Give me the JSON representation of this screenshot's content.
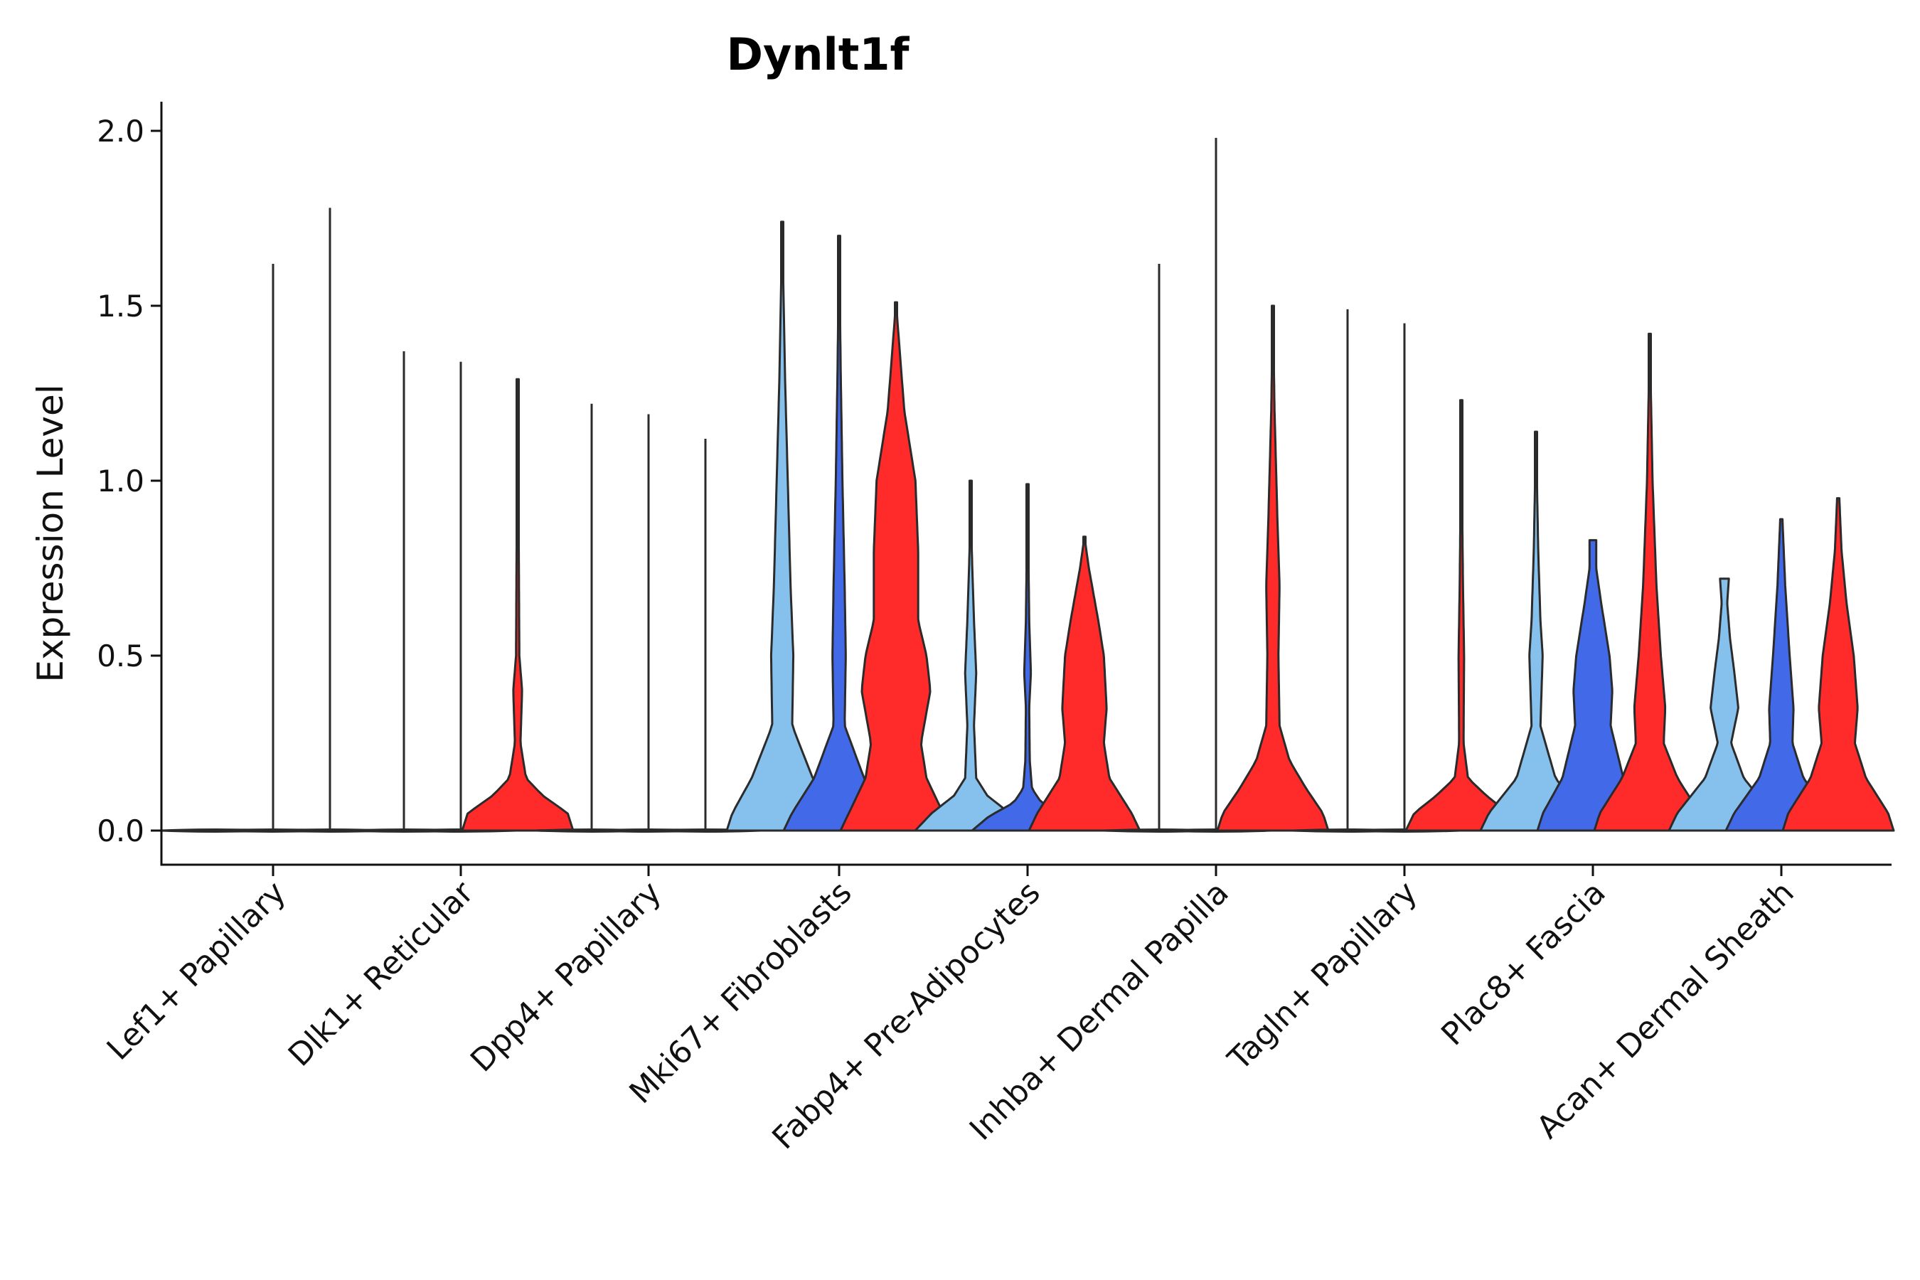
{
  "chart_data": {
    "type": "violin",
    "title": "Dynlt1f",
    "xlabel": "",
    "ylabel": "Expression Level",
    "ylim": [
      -0.1,
      2.08
    ],
    "yticks": [
      "0.0",
      "0.5",
      "1.0",
      "1.5",
      "2.0"
    ],
    "grid": false,
    "legend": "none",
    "series_colors": [
      "#85C1EC",
      "#4169E8",
      "#FF2A2A"
    ],
    "categories": [
      "Lef1+ Papillary",
      "Dlk1+ Reticular",
      "Dpp4+ Papillary",
      "Mki67+ Fibroblasts",
      "Fabp4+ Pre-Adipocytes",
      "Inhba+ Dermal Papilla",
      "Tagln+ Papillary",
      "Plac8+ Fascia",
      "Acan+ Dermal Sheath"
    ],
    "violins": [
      [
        {
          "max": 0.0
        },
        {
          "max": 1.62
        },
        {
          "max": 1.78
        }
      ],
      [
        {
          "max": 1.37
        },
        {
          "max": 1.34
        },
        {
          "max": 1.29,
          "profile": [
            [
              0,
              1
            ],
            [
              0.05,
              0.9
            ],
            [
              0.1,
              0.45
            ],
            [
              0.15,
              0.15
            ],
            [
              0.25,
              0.05
            ],
            [
              0.4,
              0.08
            ],
            [
              0.5,
              0.03
            ],
            [
              0.8,
              0.02
            ],
            [
              1.29,
              0
            ]
          ]
        }
      ],
      [
        {
          "max": 1.22
        },
        {
          "max": 1.19
        },
        {
          "max": 1.12
        }
      ],
      [
        {
          "max": 1.74,
          "profile": [
            [
              0,
              1
            ],
            [
              0.05,
              0.9
            ],
            [
              0.15,
              0.55
            ],
            [
              0.3,
              0.18
            ],
            [
              0.5,
              0.2
            ],
            [
              0.7,
              0.15
            ],
            [
              1.0,
              0.1
            ],
            [
              1.3,
              0.05
            ],
            [
              1.74,
              0
            ]
          ]
        },
        {
          "max": 1.7,
          "profile": [
            [
              0,
              1
            ],
            [
              0.05,
              0.85
            ],
            [
              0.15,
              0.45
            ],
            [
              0.3,
              0.1
            ],
            [
              0.5,
              0.12
            ],
            [
              0.7,
              0.1
            ],
            [
              1.0,
              0.06
            ],
            [
              1.3,
              0.03
            ],
            [
              1.7,
              0
            ]
          ]
        },
        {
          "max": 1.51,
          "profile": [
            [
              0,
              1
            ],
            [
              0.05,
              0.85
            ],
            [
              0.15,
              0.55
            ],
            [
              0.25,
              0.45
            ],
            [
              0.4,
              0.62
            ],
            [
              0.5,
              0.55
            ],
            [
              0.6,
              0.4
            ],
            [
              0.8,
              0.4
            ],
            [
              1.0,
              0.35
            ],
            [
              1.2,
              0.15
            ],
            [
              1.51,
              0
            ]
          ]
        }
      ],
      [
        {
          "max": 1.0,
          "profile": [
            [
              0,
              1
            ],
            [
              0.05,
              0.7
            ],
            [
              0.1,
              0.3
            ],
            [
              0.15,
              0.1
            ],
            [
              0.3,
              0.06
            ],
            [
              0.45,
              0.1
            ],
            [
              0.6,
              0.06
            ],
            [
              0.8,
              0.02
            ],
            [
              1.0,
              0
            ]
          ]
        },
        {
          "max": 0.99,
          "profile": [
            [
              0,
              1
            ],
            [
              0.04,
              0.7
            ],
            [
              0.08,
              0.25
            ],
            [
              0.12,
              0.08
            ],
            [
              0.2,
              0.04
            ],
            [
              0.35,
              0.03
            ],
            [
              0.45,
              0.06
            ],
            [
              0.6,
              0.03
            ],
            [
              0.99,
              0
            ]
          ]
        },
        {
          "max": 0.84,
          "profile": [
            [
              0,
              1
            ],
            [
              0.05,
              0.85
            ],
            [
              0.15,
              0.45
            ],
            [
              0.25,
              0.35
            ],
            [
              0.35,
              0.4
            ],
            [
              0.5,
              0.35
            ],
            [
              0.6,
              0.25
            ],
            [
              0.75,
              0.08
            ],
            [
              0.84,
              0
            ]
          ]
        }
      ],
      [
        {
          "max": 1.62
        },
        {
          "max": 1.98
        },
        {
          "max": 1.5,
          "profile": [
            [
              0,
              1
            ],
            [
              0.05,
              0.9
            ],
            [
              0.12,
              0.6
            ],
            [
              0.2,
              0.3
            ],
            [
              0.3,
              0.12
            ],
            [
              0.5,
              0.1
            ],
            [
              0.7,
              0.12
            ],
            [
              0.9,
              0.08
            ],
            [
              1.2,
              0.03
            ],
            [
              1.5,
              0
            ]
          ]
        }
      ],
      [
        {
          "max": 1.49
        },
        {
          "max": 1.45
        },
        {
          "max": 1.23,
          "profile": [
            [
              0,
              1
            ],
            [
              0.05,
              0.85
            ],
            [
              0.1,
              0.45
            ],
            [
              0.15,
              0.12
            ],
            [
              0.25,
              0.04
            ],
            [
              0.5,
              0.05
            ],
            [
              0.7,
              0.03
            ],
            [
              1.0,
              0.01
            ],
            [
              1.23,
              0
            ]
          ]
        }
      ],
      [
        {
          "max": 1.14,
          "profile": [
            [
              0,
              1
            ],
            [
              0.05,
              0.85
            ],
            [
              0.15,
              0.35
            ],
            [
              0.3,
              0.08
            ],
            [
              0.5,
              0.12
            ],
            [
              0.6,
              0.08
            ],
            [
              0.8,
              0.04
            ],
            [
              1.14,
              0
            ]
          ]
        },
        {
          "max": 0.83,
          "profile": [
            [
              0,
              1
            ],
            [
              0.05,
              0.9
            ],
            [
              0.15,
              0.55
            ],
            [
              0.3,
              0.32
            ],
            [
              0.4,
              0.35
            ],
            [
              0.5,
              0.3
            ],
            [
              0.65,
              0.15
            ],
            [
              0.75,
              0.06
            ],
            [
              0.83,
              0.06
            ]
          ]
        },
        {
          "max": 1.42,
          "profile": [
            [
              0,
              1
            ],
            [
              0.05,
              0.9
            ],
            [
              0.15,
              0.5
            ],
            [
              0.25,
              0.25
            ],
            [
              0.35,
              0.28
            ],
            [
              0.5,
              0.2
            ],
            [
              0.7,
              0.12
            ],
            [
              1.0,
              0.05
            ],
            [
              1.42,
              0
            ]
          ]
        }
      ],
      [
        {
          "max": 0.72,
          "profile": [
            [
              0,
              1
            ],
            [
              0.05,
              0.85
            ],
            [
              0.15,
              0.35
            ],
            [
              0.25,
              0.12
            ],
            [
              0.35,
              0.25
            ],
            [
              0.45,
              0.18
            ],
            [
              0.55,
              0.1
            ],
            [
              0.65,
              0.05
            ],
            [
              0.72,
              0.08
            ]
          ]
        },
        {
          "max": 0.89,
          "profile": [
            [
              0,
              1
            ],
            [
              0.05,
              0.85
            ],
            [
              0.15,
              0.4
            ],
            [
              0.25,
              0.2
            ],
            [
              0.35,
              0.22
            ],
            [
              0.5,
              0.15
            ],
            [
              0.7,
              0.07
            ],
            [
              0.89,
              0.02
            ]
          ]
        },
        {
          "max": 0.95,
          "profile": [
            [
              0,
              1
            ],
            [
              0.05,
              0.9
            ],
            [
              0.15,
              0.5
            ],
            [
              0.25,
              0.3
            ],
            [
              0.35,
              0.35
            ],
            [
              0.5,
              0.28
            ],
            [
              0.65,
              0.15
            ],
            [
              0.8,
              0.06
            ],
            [
              0.95,
              0.02
            ]
          ]
        }
      ]
    ]
  }
}
